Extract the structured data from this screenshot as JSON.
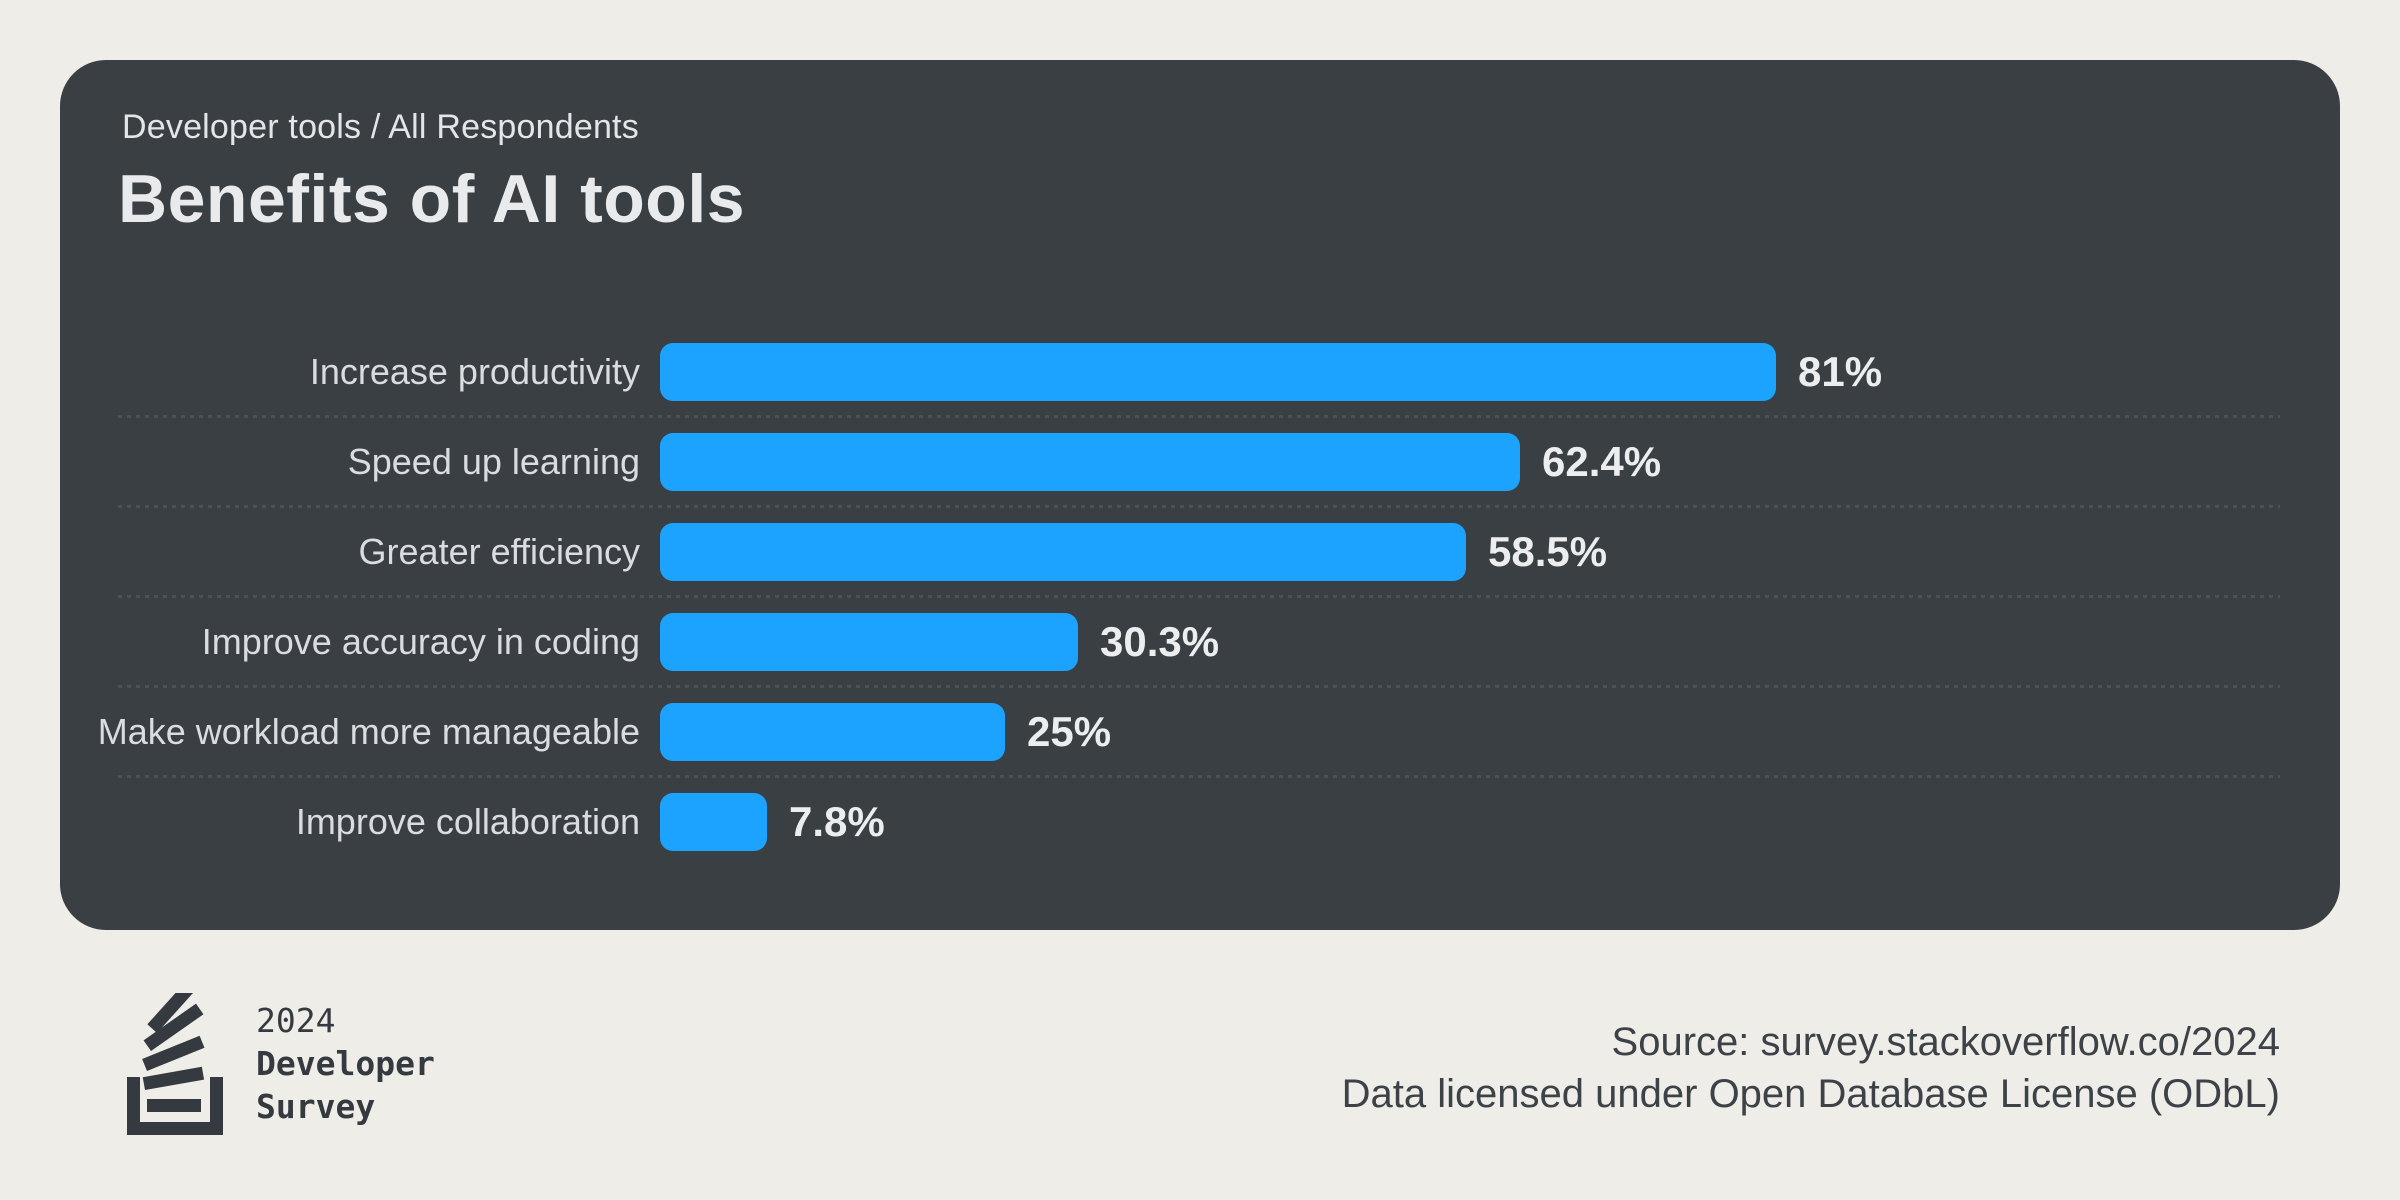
{
  "page": {
    "background_color": "#EFEDE8"
  },
  "card": {
    "background_color": "#3A3F44",
    "breadcrumb": "Developer tools / All Respondents",
    "title": "Benefits of AI tools"
  },
  "chart_data": {
    "type": "bar",
    "orientation": "horizontal",
    "title": "Benefits of AI tools",
    "categories": [
      "Increase productivity",
      "Speed up learning",
      "Greater efficiency",
      "Improve accuracy in coding",
      "Make workload more manageable",
      "Improve collaboration"
    ],
    "values": [
      81,
      62.4,
      58.5,
      30.3,
      25,
      7.8
    ],
    "value_labels": [
      "81%",
      "62.4%",
      "58.5%",
      "30.3%",
      "25%",
      "7.8%"
    ],
    "xlim": [
      0,
      100
    ],
    "bar_color": "#1CA2FF",
    "grid": "dotted-row-separators",
    "legend": "none"
  },
  "footer": {
    "logo": {
      "icon": "stackoverflow-logo",
      "year": "2024",
      "line1": "Developer",
      "line2": "Survey"
    },
    "source_line1": "Source: survey.stackoverflow.co/2024",
    "source_line2": "Data licensed under Open Database License (ODbL)"
  }
}
